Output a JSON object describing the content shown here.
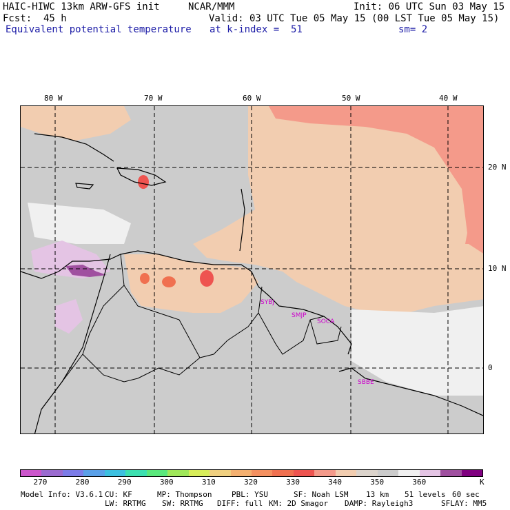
{
  "header": {
    "line1_left": "HAIC-HIWC 13km ARW-GFS init",
    "line1_mid": "NCAR/MMM",
    "line1_right": "Init: 06 UTC Sun 03 May 15",
    "line2_left": "Fcst:",
    "line2_fcst": "45 h",
    "line2_right": "Valid: 03 UTC Tue 05 May 15 (00 LST Tue 05 May 15)",
    "line3_left": "Equivalent potential temperature",
    "line3_mid": "at k-index =  51",
    "line3_right": "sm= 2"
  },
  "map": {
    "lon_labels": [
      "80 W",
      "70 W",
      "60 W",
      "50 W",
      "40 W"
    ],
    "lat_labels": [
      "20 N",
      "10 N",
      "0"
    ],
    "stations": [
      "SYBJ",
      "SMJP",
      "SOCA",
      "SBBE"
    ]
  },
  "colorbar": {
    "colors": [
      "#cc55cc",
      "#9b6bd0",
      "#7c7ce8",
      "#5aa0e8",
      "#3cc0e0",
      "#3ce0b0",
      "#5ae87c",
      "#a0e85a",
      "#d8ee5a",
      "#f0d080",
      "#f4b070",
      "#f49060",
      "#f07050",
      "#ee5450",
      "#f49a8a",
      "#f2cdb0",
      "#dcd4cc",
      "#cccccc",
      "#f0f0f0",
      "#e4c4e4",
      "#a050a0",
      "#800080"
    ],
    "labels": [
      "270",
      "280",
      "290",
      "300",
      "310",
      "320",
      "330",
      "340",
      "350",
      "360"
    ],
    "unit": "K"
  },
  "footer": {
    "line1": [
      "Model Info: V3.6.1",
      "CU: KF",
      "MP: Thompson",
      "PBL: YSU",
      "SF: Noah LSM",
      "13 km",
      "51 levels",
      "60 sec"
    ],
    "line2": [
      "LW: RRTMG",
      "SW: RRTMG",
      "DIFF: full",
      "KM: 2D Smagor",
      "DAMP: Rayleigh3",
      "SFLAY: MM5"
    ]
  }
}
